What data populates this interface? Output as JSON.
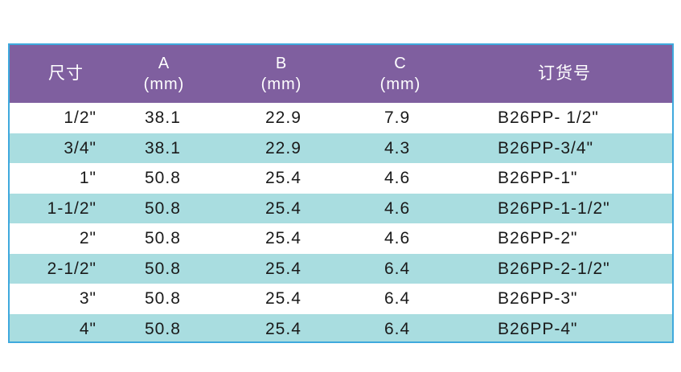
{
  "headers": {
    "size": "尺寸",
    "a": {
      "letter": "A",
      "unit": "(mm)"
    },
    "b": {
      "letter": "B",
      "unit": "(mm)"
    },
    "c": {
      "letter": "C",
      "unit": "(mm)"
    },
    "order_no": "订货号"
  },
  "rows": [
    {
      "size": "1/2\"",
      "a": "38.1",
      "b": "22.9",
      "c": "7.9",
      "order_no": "B26PP- 1/2\""
    },
    {
      "size": "3/4\"",
      "a": "38.1",
      "b": "22.9",
      "c": "4.3",
      "order_no": "B26PP-3/4\""
    },
    {
      "size": "1\"",
      "a": "50.8",
      "b": "25.4",
      "c": "4.6",
      "order_no": "B26PP-1\""
    },
    {
      "size": "1-1/2\"",
      "a": "50.8",
      "b": "25.4",
      "c": "4.6",
      "order_no": "B26PP-1-1/2\""
    },
    {
      "size": "2\"",
      "a": "50.8",
      "b": "25.4",
      "c": "4.6",
      "order_no": "B26PP-2\""
    },
    {
      "size": "2-1/2\"",
      "a": "50.8",
      "b": "25.4",
      "c": "6.4",
      "order_no": "B26PP-2-1/2\""
    },
    {
      "size": "3\"",
      "a": "50.8",
      "b": "25.4",
      "c": "6.4",
      "order_no": "B26PP-3\""
    },
    {
      "size": "4\"",
      "a": "50.8",
      "b": "25.4",
      "c": "6.4",
      "order_no": "B26PP-4\""
    }
  ],
  "colors": {
    "header_bg": "#7f5f9f",
    "stripe": "#a9dde0",
    "border": "#3fa9dd"
  }
}
